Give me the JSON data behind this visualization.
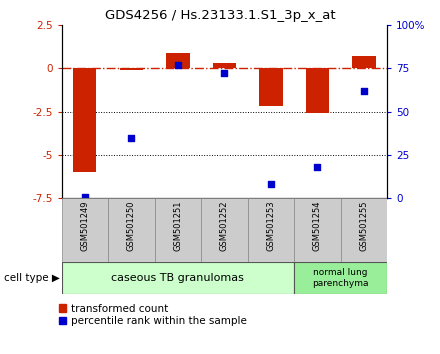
{
  "title": "GDS4256 / Hs.23133.1.S1_3p_x_at",
  "samples": [
    "GSM501249",
    "GSM501250",
    "GSM501251",
    "GSM501252",
    "GSM501253",
    "GSM501254",
    "GSM501255"
  ],
  "transformed_count": [
    -6.0,
    -0.1,
    0.9,
    0.3,
    -2.2,
    -2.6,
    0.7
  ],
  "percentile_rank": [
    0.5,
    35,
    77,
    72,
    8,
    18,
    62
  ],
  "ylim_left": [
    -7.5,
    2.5
  ],
  "ylim_right": [
    0,
    100
  ],
  "yticks_left": [
    2.5,
    0,
    -2.5,
    -5.0,
    -7.5
  ],
  "yticks_right": [
    0,
    25,
    50,
    75,
    100
  ],
  "ytick_labels_left": [
    "2.5",
    "0",
    "-2.5",
    "-5",
    "-7.5"
  ],
  "ytick_labels_right": [
    "0",
    "25",
    "50",
    "75",
    "100%"
  ],
  "bar_color": "#cc2200",
  "scatter_color": "#0000cc",
  "dashed_line_color": "#cc2200",
  "group1_label": "caseous TB granulomas",
  "group2_label": "normal lung\nparenchyma",
  "group1_indices": [
    0,
    1,
    2,
    3,
    4
  ],
  "group2_indices": [
    5,
    6
  ],
  "group1_color": "#ccffcc",
  "group2_color": "#99ee99",
  "sample_box_color": "#cccccc",
  "legend_red_label": "transformed count",
  "legend_blue_label": "percentile rank within the sample",
  "cell_type_label": "cell type"
}
